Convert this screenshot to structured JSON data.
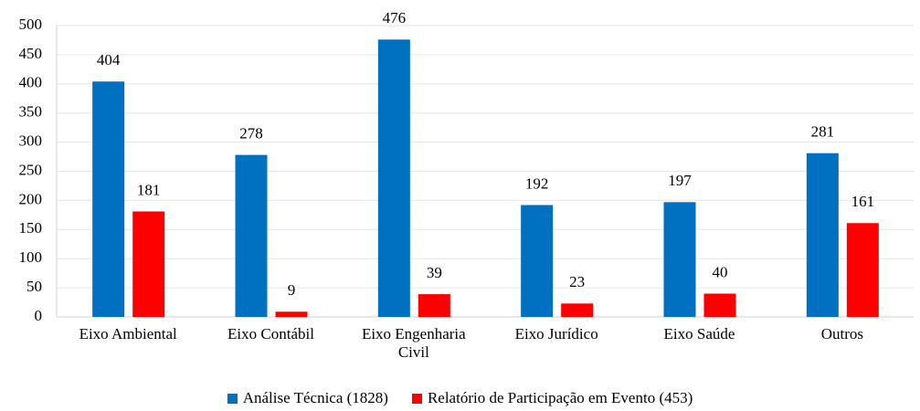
{
  "chart_data": {
    "type": "bar",
    "categories": [
      "Eixo Ambiental",
      "Eixo Contábil",
      "Eixo Engenharia Civil",
      "Eixo Jurídico",
      "Eixo Saúde",
      "Outros"
    ],
    "series": [
      {
        "name": "Análise Técnica (1828)",
        "color": "#0070c0",
        "values": [
          404,
          278,
          476,
          192,
          197,
          281
        ]
      },
      {
        "name": "Relatório de Participação em Evento (453)",
        "color": "#ff0000",
        "values": [
          181,
          9,
          39,
          23,
          40,
          161
        ]
      }
    ],
    "ylim": [
      0,
      500
    ],
    "yticks": [
      0,
      50,
      100,
      150,
      200,
      250,
      300,
      350,
      400,
      450,
      500
    ],
    "grid": true,
    "legend": "bottom"
  }
}
